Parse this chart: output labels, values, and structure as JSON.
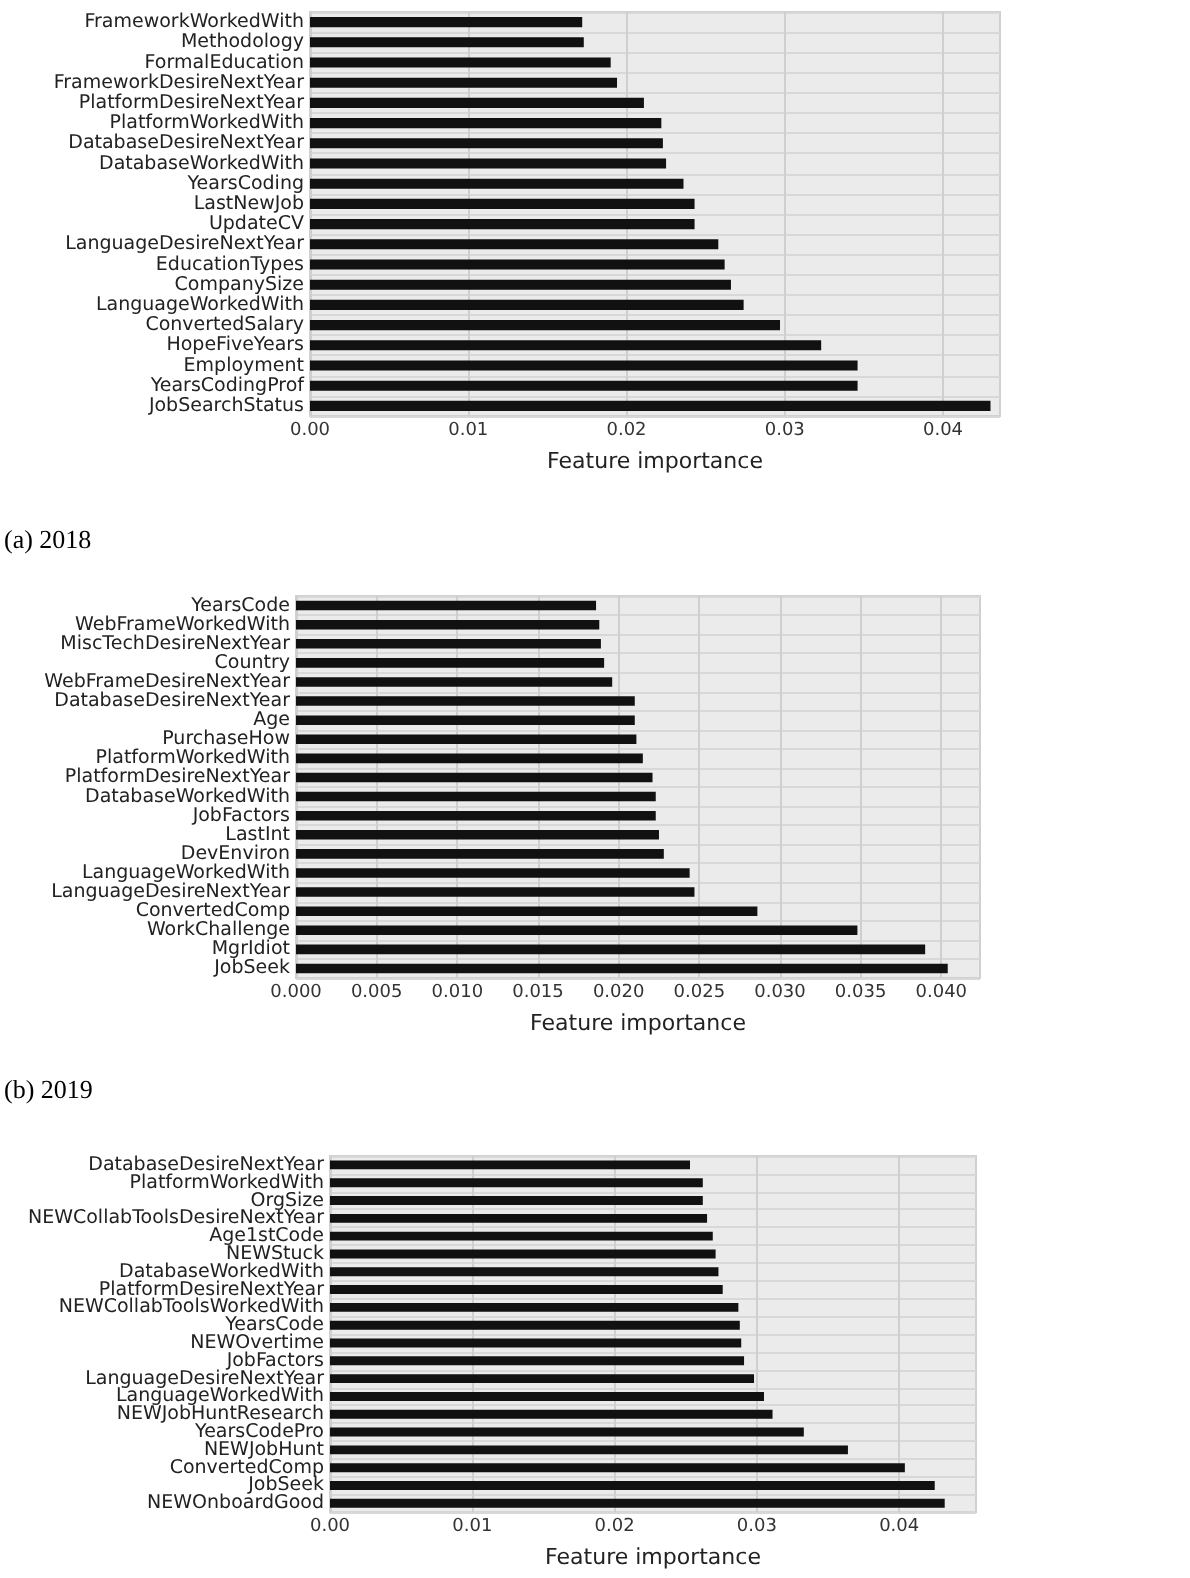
{
  "chart_data": [
    {
      "type": "bar",
      "orientation": "horizontal",
      "xlabel": "Feature importance",
      "annotations": [
        "(a) 2018"
      ],
      "grid": true,
      "color": "#111111",
      "categories": [
        "FrameworkWorkedWith",
        "Methodology",
        "FormalEducation",
        "FrameworkDesireNextYear",
        "PlatformDesireNextYear",
        "PlatformWorkedWith",
        "DatabaseDesireNextYear",
        "DatabaseWorkedWith",
        "YearsCoding",
        "LastNewJob",
        "UpdateCV",
        "LanguageDesireNextYear",
        "EducationTypes",
        "CompanySize",
        "LanguageWorkedWith",
        "ConvertedSalary",
        "HopeFiveYears",
        "Employment",
        "YearsCodingProf",
        "JobSearchStatus"
      ],
      "values": [
        0.0172,
        0.0173,
        0.019,
        0.0194,
        0.0211,
        0.0222,
        0.0223,
        0.0225,
        0.0236,
        0.0243,
        0.0243,
        0.0258,
        0.0262,
        0.0266,
        0.0274,
        0.0297,
        0.0323,
        0.0346,
        0.0346,
        0.043
      ],
      "xlim": [
        0,
        0.0436
      ],
      "xticks": [
        {
          "value": 0,
          "label": "0.00"
        },
        {
          "value": 0.01,
          "label": "0.01"
        },
        {
          "value": 0.02,
          "label": "0.02"
        },
        {
          "value": 0.03,
          "label": "0.03"
        },
        {
          "value": 0.04,
          "label": "0.04"
        }
      ]
    },
    {
      "type": "bar",
      "orientation": "horizontal",
      "xlabel": "Feature importance",
      "annotations": [
        "(b) 2019"
      ],
      "grid": true,
      "color": "#111111",
      "categories": [
        "YearsCode",
        "WebFrameWorkedWith",
        "MiscTechDesireNextYear",
        "Country",
        "WebFrameDesireNextYear",
        "DatabaseDesireNextYear",
        "Age",
        "PurchaseHow",
        "PlatformWorkedWith",
        "PlatformDesireNextYear",
        "DatabaseWorkedWith",
        "JobFactors",
        "LastInt",
        "DevEnviron",
        "LanguageWorkedWith",
        "LanguageDesireNextYear",
        "ConvertedComp",
        "WorkChallenge",
        "MgrIdiot",
        "JobSeek"
      ],
      "values": [
        0.0186,
        0.0188,
        0.0189,
        0.0191,
        0.0196,
        0.021,
        0.021,
        0.0211,
        0.0215,
        0.0221,
        0.0223,
        0.0223,
        0.0225,
        0.0228,
        0.0244,
        0.0247,
        0.0286,
        0.0348,
        0.039,
        0.0404
      ],
      "xlim": [
        0,
        0.0424
      ],
      "xticks": [
        {
          "value": 0,
          "label": "0.000"
        },
        {
          "value": 0.005,
          "label": "0.005"
        },
        {
          "value": 0.01,
          "label": "0.010"
        },
        {
          "value": 0.015,
          "label": "0.015"
        },
        {
          "value": 0.02,
          "label": "0.020"
        },
        {
          "value": 0.025,
          "label": "0.025"
        },
        {
          "value": 0.03,
          "label": "0.030"
        },
        {
          "value": 0.035,
          "label": "0.035"
        },
        {
          "value": 0.04,
          "label": "0.040"
        }
      ]
    },
    {
      "type": "bar",
      "orientation": "horizontal",
      "xlabel": "Feature importance",
      "grid": true,
      "color": "#111111",
      "categories": [
        "DatabaseDesireNextYear",
        "PlatformWorkedWith",
        "OrgSize",
        "NEWCollabToolsDesireNextYear",
        "Age1stCode",
        "NEWStuck",
        "DatabaseWorkedWith",
        "PlatformDesireNextYear",
        "NEWCollabToolsWorkedWith",
        "YearsCode",
        "NEWOvertime",
        "JobFactors",
        "LanguageDesireNextYear",
        "LanguageWorkedWith",
        "NEWJobHuntResearch",
        "YearsCodePro",
        "NEWJobHunt",
        "ConvertedComp",
        "JobSeek",
        "NEWOnboardGood"
      ],
      "values": [
        0.0253,
        0.0262,
        0.0262,
        0.0265,
        0.0269,
        0.0271,
        0.0273,
        0.0276,
        0.0287,
        0.0288,
        0.0289,
        0.0291,
        0.0298,
        0.0305,
        0.0311,
        0.0333,
        0.0364,
        0.0404,
        0.0425,
        0.0432
      ],
      "xlim": [
        0,
        0.0454
      ],
      "xticks": [
        {
          "value": 0,
          "label": "0.00"
        },
        {
          "value": 0.01,
          "label": "0.01"
        },
        {
          "value": 0.02,
          "label": "0.02"
        },
        {
          "value": 0.03,
          "label": "0.03"
        },
        {
          "value": 0.04,
          "label": "0.04"
        }
      ]
    }
  ]
}
